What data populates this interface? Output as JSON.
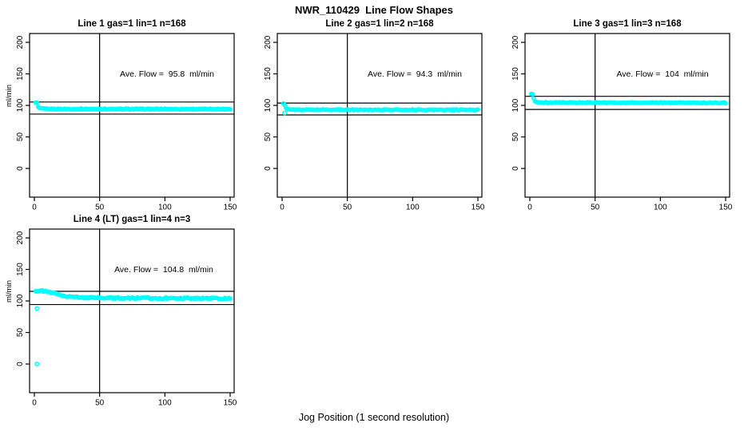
{
  "title": "NWR_110429  Line Flow Shapes",
  "xlabel": "Jog Position (1 second resolution)",
  "ylabel": "ml/min",
  "colors": {
    "points": "#00ffff",
    "axis": "#000000",
    "background": "#ffffff",
    "text": "#000000"
  },
  "axes": {
    "x_tick_labels": [
      "0",
      "50",
      "100",
      "150"
    ],
    "x_ticks": [
      0,
      50,
      100,
      150
    ],
    "y_tick_labels": [
      "0",
      "50",
      "100",
      "150",
      "200"
    ],
    "y_ticks": [
      0,
      50,
      100,
      150,
      200
    ],
    "x_domain": [
      -3.67,
      153.06
    ],
    "y_domain": [
      -45.5,
      214
    ],
    "ref_vertical_x": 50
  },
  "chart_data": [
    {
      "type": "scatter",
      "title": "Line 1 gas=1 lin=1 n=168",
      "annotation": "Ave. Flow =  95.8  ml/min",
      "avg_flow_ml_min": 95.8,
      "n": 168,
      "upper_line": 105.4,
      "lower_line": 86.2,
      "x_range": [
        1,
        150
      ],
      "keypoints": [
        [
          1,
          105
        ],
        [
          2,
          104
        ],
        [
          3,
          97.5
        ],
        [
          4,
          95.5
        ],
        [
          6,
          94.8
        ],
        [
          10,
          94.3
        ],
        [
          150,
          94.2
        ]
      ],
      "noise": 0.7,
      "outliers": [],
      "seed": 1
    },
    {
      "type": "scatter",
      "title": "Line 2 gas=1 lin=2 n=168",
      "annotation": "Ave. Flow =  94.3  ml/min",
      "avg_flow_ml_min": 94.3,
      "n": 168,
      "upper_line": 103.7,
      "lower_line": 84.9,
      "x_range": [
        1,
        150
      ],
      "keypoints": [
        [
          1,
          103
        ],
        [
          2,
          100.5
        ],
        [
          3,
          96
        ],
        [
          4,
          94
        ],
        [
          6,
          93.2
        ],
        [
          150,
          92.9
        ]
      ],
      "noise": 0.7,
      "outliers": [
        [
          2,
          88
        ]
      ],
      "seed": 2
    },
    {
      "type": "scatter",
      "title": "Line 3 gas=1 lin=3 n=168",
      "annotation": "Ave. Flow =  104  ml/min",
      "avg_flow_ml_min": 104,
      "n": 168,
      "upper_line": 114.4,
      "lower_line": 93.6,
      "x_range": [
        1,
        150
      ],
      "keypoints": [
        [
          1,
          118.5
        ],
        [
          2,
          117.5
        ],
        [
          3,
          111
        ],
        [
          4,
          107
        ],
        [
          6,
          105
        ],
        [
          10,
          104.4
        ],
        [
          150,
          104.1
        ]
      ],
      "noise": 0.7,
      "outliers": [],
      "seed": 3
    },
    {
      "type": "scatter",
      "title": "Line 4 (LT) gas=1 lin=4 n=3",
      "annotation": "Ave. Flow =  104.8  ml/min",
      "avg_flow_ml_min": 104.8,
      "n": 3,
      "upper_line": 115.3,
      "lower_line": 94.3,
      "x_range": [
        1,
        150
      ],
      "keypoints": [
        [
          1,
          115.5
        ],
        [
          4,
          116.2
        ],
        [
          8,
          115.5
        ],
        [
          12,
          113.5
        ],
        [
          16,
          111.5
        ],
        [
          20,
          109.5
        ],
        [
          25,
          107.5
        ],
        [
          30,
          106.3
        ],
        [
          38,
          105.3
        ],
        [
          50,
          104.8
        ],
        [
          70,
          104.6
        ],
        [
          100,
          104.4
        ],
        [
          130,
          104.2
        ],
        [
          150,
          103.8
        ]
      ],
      "noise": 1.1,
      "outliers": [
        [
          2,
          88
        ],
        [
          2,
          0
        ]
      ],
      "seed": 4
    }
  ]
}
